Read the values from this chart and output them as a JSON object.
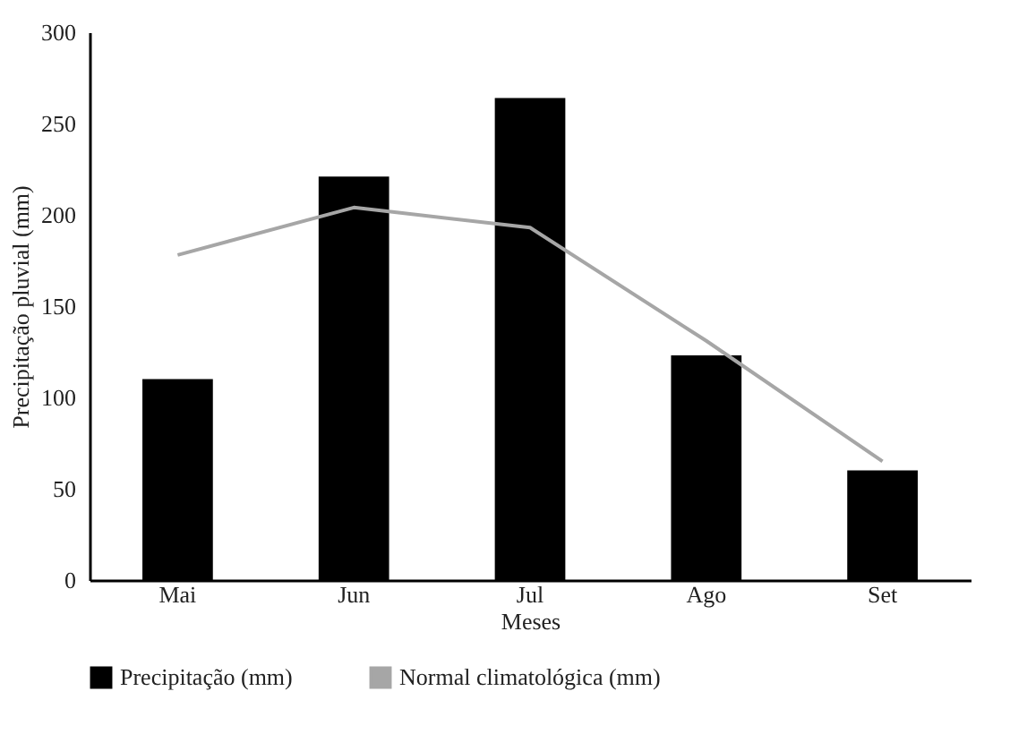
{
  "chart_data": {
    "type": "bar",
    "xlabel": "Meses",
    "ylabel": "Precipitação pluvial (mm)",
    "categories": [
      "Mai",
      "Jun",
      "Jul",
      "Ago",
      "Set"
    ],
    "series": [
      {
        "name": "Precipitação (mm)",
        "color": "#000000",
        "values": [
          110,
          221,
          264,
          123,
          60
        ]
      },
      {
        "name": "Normal climatológica (mm)",
        "type": "line",
        "color": "#a6a6a6",
        "values": [
          178,
          204,
          193,
          131,
          65
        ]
      }
    ],
    "ylim": [
      0,
      300
    ],
    "yticks": [
      0,
      50,
      100,
      150,
      200,
      250,
      300
    ],
    "grid": false,
    "legend": "bottom"
  }
}
